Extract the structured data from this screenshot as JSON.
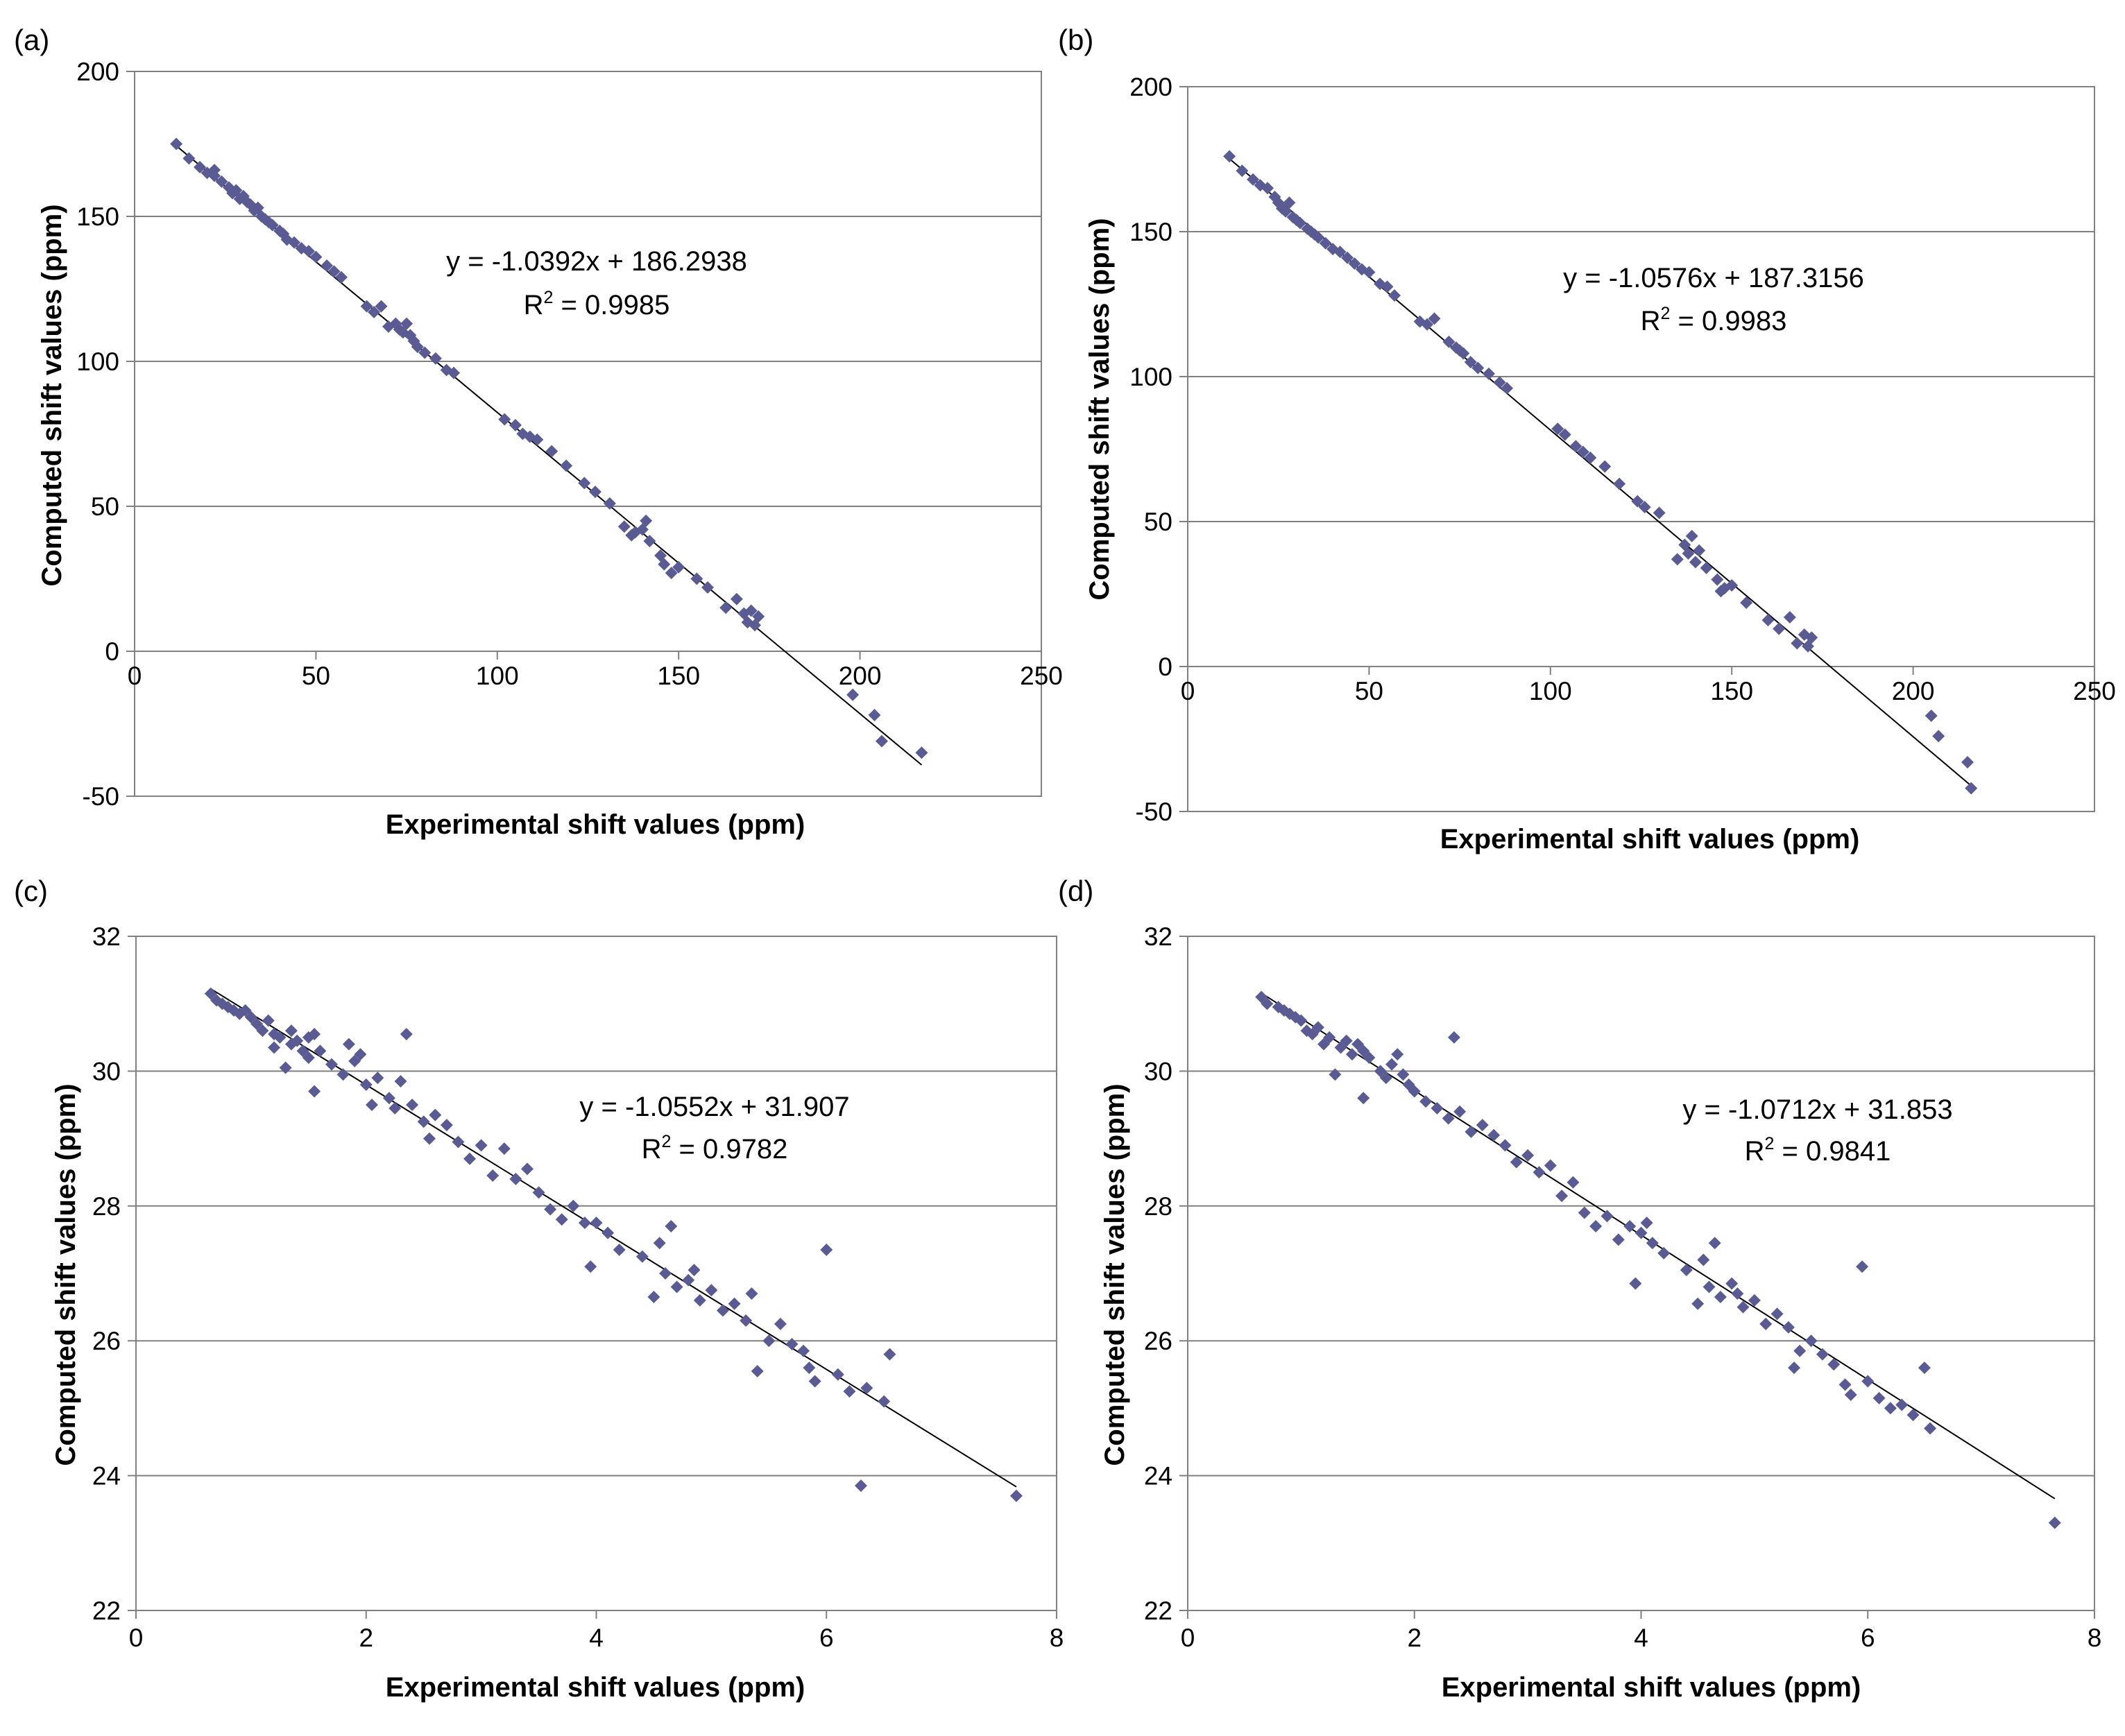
{
  "figure": {
    "background": "#ffffff",
    "marker_color": "#5b5b94",
    "gridline_color": "#808080",
    "trendline_color": "#000000"
  },
  "chart_data": [
    {
      "id": "a",
      "panel_label": "(a)",
      "type": "scatter",
      "xlabel": "Experimental shift values (ppm)",
      "ylabel": "Computed shift values (ppm)",
      "xlim": [
        0,
        250
      ],
      "ylim": [
        -50,
        200
      ],
      "xticks": [
        0,
        50,
        100,
        150,
        200,
        250
      ],
      "xtick_labels": [
        "0",
        "50",
        "100",
        "150",
        "200",
        "250"
      ],
      "yticks": [
        -50,
        0,
        50,
        100,
        150,
        200
      ],
      "ytick_labels": [
        "-50",
        "0",
        "50",
        "100",
        "150",
        "200"
      ],
      "y_gridlines": true,
      "x_axis_crosses_at": 0,
      "trendline": {
        "slope": -1.0392,
        "intercept": 186.2938,
        "x_range": [
          11.5,
          217
        ]
      },
      "equation": "y = -1.0392x + 186.2938",
      "r2_prefix": "R",
      "r2_exp": "2",
      "r2_value": " = 0.9985",
      "x": [
        11.5,
        15,
        18,
        20,
        22,
        22,
        24,
        26,
        27,
        28,
        29,
        30,
        31,
        32,
        33,
        34,
        35,
        36,
        37,
        38,
        40,
        41,
        42,
        44,
        46,
        48,
        50,
        53,
        55,
        57,
        64,
        66,
        68,
        70,
        72,
        73,
        74,
        75,
        76,
        77,
        78,
        80,
        83,
        86,
        88,
        102,
        105,
        107,
        109,
        111,
        115,
        119,
        124,
        127,
        131,
        135,
        137,
        138,
        140,
        141,
        142,
        145,
        146,
        148,
        150,
        155,
        158,
        163,
        166,
        168,
        169,
        170,
        171,
        172,
        198,
        204,
        206,
        217
      ],
      "y": [
        175,
        170,
        167,
        165,
        164,
        166,
        162,
        160,
        158,
        159,
        156,
        157,
        155,
        154,
        152,
        153,
        150,
        149,
        148,
        147,
        145,
        144,
        142,
        141,
        139,
        138,
        136,
        133,
        131,
        129,
        119,
        117,
        119,
        112,
        113,
        111,
        110,
        113,
        109,
        107,
        105,
        103,
        101,
        97,
        96,
        80,
        78,
        75,
        74,
        73,
        69,
        64,
        58,
        55,
        51,
        43,
        40,
        41,
        42,
        45,
        38,
        33,
        30,
        27,
        29,
        25,
        22,
        15,
        18,
        13,
        10,
        14,
        9,
        12,
        -15,
        -22,
        -31,
        -35
      ]
    },
    {
      "id": "b",
      "panel_label": "(b)",
      "type": "scatter",
      "xlabel": "Experimental shift values (ppm)",
      "ylabel": "Computed shift values (ppm)",
      "xlim": [
        0,
        250
      ],
      "ylim": [
        -50,
        200
      ],
      "xticks": [
        0,
        50,
        100,
        150,
        200,
        250
      ],
      "xtick_labels": [
        "0",
        "50",
        "100",
        "150",
        "200",
        "250"
      ],
      "yticks": [
        -50,
        0,
        50,
        100,
        150,
        200
      ],
      "ytick_labels": [
        "-50",
        "0",
        "50",
        "100",
        "150",
        "200"
      ],
      "y_gridlines": true,
      "x_axis_crosses_at": 0,
      "trendline": {
        "slope": -1.0576,
        "intercept": 187.3156,
        "x_range": [
          11.5,
          217
        ]
      },
      "equation": "y = -1.0576x + 187.3156",
      "r2_prefix": "R",
      "r2_exp": "2",
      "r2_value": " = 0.9983",
      "x": [
        11.5,
        15,
        18,
        20,
        22,
        24,
        25,
        26,
        27,
        28,
        29,
        30,
        31,
        33,
        34,
        35,
        36,
        38,
        40,
        42,
        44,
        46,
        48,
        50,
        53,
        55,
        57,
        64,
        66,
        68,
        72,
        74,
        75,
        76,
        78,
        80,
        83,
        86,
        88,
        102,
        104,
        107,
        109,
        111,
        115,
        119,
        124,
        126,
        130,
        135,
        137,
        138,
        139,
        140,
        141,
        143,
        146,
        147,
        148,
        150,
        154,
        160,
        163,
        166,
        168,
        170,
        171,
        172,
        205,
        207,
        215,
        216
      ],
      "y": [
        176,
        171,
        168,
        166,
        165,
        162,
        160,
        158,
        157,
        160,
        155,
        154,
        153,
        151,
        150,
        149,
        148,
        146,
        144,
        143,
        141,
        139,
        137,
        136,
        132,
        131,
        128,
        119,
        118,
        120,
        112,
        110,
        109,
        108,
        105,
        103,
        101,
        98,
        96,
        82,
        80,
        76,
        74,
        72,
        69,
        63,
        57,
        55,
        53,
        37,
        42,
        39,
        45,
        36,
        40,
        34,
        30,
        26,
        27,
        28,
        22,
        16,
        13,
        17,
        8,
        11,
        7,
        10,
        -17,
        -24,
        -33,
        -42
      ]
    },
    {
      "id": "c",
      "panel_label": "(c)",
      "type": "scatter",
      "xlabel": "Experimental shift values (ppm)",
      "ylabel": "Computed shift values (ppm)",
      "xlim": [
        0,
        8
      ],
      "ylim": [
        22,
        32
      ],
      "xticks": [
        0,
        2,
        4,
        6,
        8
      ],
      "xtick_labels": [
        "0",
        "2",
        "4",
        "6",
        "8"
      ],
      "yticks": [
        22,
        24,
        26,
        28,
        30,
        32
      ],
      "ytick_labels": [
        "22",
        "24",
        "26",
        "28",
        "30",
        "32"
      ],
      "y_gridlines": true,
      "trendline": {
        "slope": -1.0552,
        "intercept": 31.907,
        "x_range": [
          0.65,
          7.65
        ]
      },
      "equation": "y = -1.0552x + 31.907",
      "r2_prefix": "R",
      "r2_exp": "2",
      "r2_value": " = 0.9782",
      "x": [
        0.65,
        0.7,
        0.75,
        0.8,
        0.85,
        0.9,
        0.95,
        1.0,
        1.05,
        1.1,
        1.15,
        1.2,
        1.2,
        1.25,
        1.3,
        1.35,
        1.35,
        1.4,
        1.45,
        1.5,
        1.5,
        1.55,
        1.55,
        1.6,
        1.7,
        1.8,
        1.85,
        1.9,
        1.95,
        2.0,
        2.05,
        2.1,
        2.2,
        2.25,
        2.3,
        2.35,
        2.4,
        2.5,
        2.55,
        2.6,
        2.7,
        2.8,
        2.9,
        3.0,
        3.1,
        3.2,
        3.3,
        3.4,
        3.5,
        3.6,
        3.7,
        3.8,
        3.9,
        3.95,
        4.0,
        4.1,
        4.2,
        4.4,
        4.5,
        4.55,
        4.6,
        4.65,
        4.7,
        4.8,
        4.85,
        4.9,
        5.0,
        5.1,
        5.2,
        5.3,
        5.35,
        5.4,
        5.5,
        5.6,
        5.7,
        5.8,
        5.85,
        5.9,
        6.0,
        6.1,
        6.2,
        6.3,
        6.35,
        6.5,
        6.55,
        7.65
      ],
      "y": [
        31.15,
        31.05,
        31.0,
        30.95,
        30.9,
        30.85,
        30.9,
        30.8,
        30.7,
        30.6,
        30.75,
        30.55,
        30.35,
        30.5,
        30.05,
        30.4,
        30.6,
        30.45,
        30.3,
        30.5,
        30.2,
        30.55,
        29.7,
        30.3,
        30.1,
        29.95,
        30.4,
        30.15,
        30.25,
        29.8,
        29.5,
        29.9,
        29.6,
        29.45,
        29.85,
        30.55,
        29.5,
        29.25,
        29.0,
        29.35,
        29.2,
        28.95,
        28.7,
        28.9,
        28.45,
        28.85,
        28.4,
        28.55,
        28.2,
        27.95,
        27.8,
        28.0,
        27.75,
        27.1,
        27.75,
        27.6,
        27.35,
        27.25,
        26.65,
        27.45,
        27.0,
        27.7,
        26.8,
        26.9,
        27.05,
        26.6,
        26.75,
        26.45,
        26.55,
        26.3,
        26.7,
        25.55,
        26.0,
        26.25,
        25.95,
        25.85,
        25.6,
        25.4,
        27.35,
        25.5,
        25.25,
        23.85,
        25.3,
        25.1,
        25.8,
        23.7
      ]
    },
    {
      "id": "d",
      "panel_label": "(d)",
      "type": "scatter",
      "xlabel": "Experimental shift values (ppm)",
      "ylabel": "Computed shift values (ppm)",
      "xlim": [
        0,
        8
      ],
      "ylim": [
        22,
        32
      ],
      "xticks": [
        0,
        2,
        4,
        6,
        8
      ],
      "xtick_labels": [
        "0",
        "2",
        "4",
        "6",
        "8"
      ],
      "yticks": [
        22,
        24,
        26,
        28,
        30,
        32
      ],
      "ytick_labels": [
        "22",
        "24",
        "26",
        "28",
        "30",
        "32"
      ],
      "y_gridlines": true,
      "trendline": {
        "slope": -1.0712,
        "intercept": 31.853,
        "x_range": [
          0.65,
          7.65
        ]
      },
      "equation": "y = -1.0712x + 31.853",
      "r2_prefix": "R",
      "r2_exp": "2",
      "r2_value": " = 0.9841",
      "x": [
        0.65,
        0.7,
        0.8,
        0.85,
        0.9,
        0.95,
        1.0,
        1.05,
        1.1,
        1.15,
        1.2,
        1.25,
        1.3,
        1.35,
        1.4,
        1.45,
        1.5,
        1.55,
        1.55,
        1.6,
        1.7,
        1.75,
        1.8,
        1.85,
        1.9,
        1.95,
        2.0,
        2.1,
        2.2,
        2.3,
        2.35,
        2.4,
        2.5,
        2.6,
        2.7,
        2.8,
        2.9,
        3.0,
        3.1,
        3.2,
        3.3,
        3.4,
        3.5,
        3.6,
        3.7,
        3.8,
        3.9,
        3.95,
        4.0,
        4.05,
        4.1,
        4.2,
        4.4,
        4.5,
        4.55,
        4.6,
        4.65,
        4.7,
        4.8,
        4.85,
        4.9,
        5.0,
        5.1,
        5.2,
        5.3,
        5.35,
        5.4,
        5.5,
        5.6,
        5.7,
        5.8,
        5.85,
        5.95,
        6.0,
        6.1,
        6.2,
        6.3,
        6.4,
        6.5,
        6.55,
        7.65
      ],
      "y": [
        31.1,
        31.0,
        30.95,
        30.9,
        30.85,
        30.8,
        30.75,
        30.6,
        30.55,
        30.65,
        30.4,
        30.5,
        29.95,
        30.35,
        30.45,
        30.25,
        30.4,
        30.3,
        29.6,
        30.2,
        30.0,
        29.9,
        30.1,
        30.25,
        29.95,
        29.8,
        29.7,
        29.55,
        29.45,
        29.3,
        30.5,
        29.4,
        29.1,
        29.2,
        29.05,
        28.9,
        28.65,
        28.75,
        28.5,
        28.6,
        28.15,
        28.35,
        27.9,
        27.7,
        27.85,
        27.5,
        27.7,
        26.85,
        27.6,
        27.75,
        27.45,
        27.3,
        27.05,
        26.55,
        27.2,
        26.8,
        27.45,
        26.65,
        26.85,
        26.7,
        26.5,
        26.6,
        26.25,
        26.4,
        26.2,
        25.6,
        25.85,
        26.0,
        25.8,
        25.65,
        25.35,
        25.2,
        27.1,
        25.4,
        25.15,
        25.0,
        25.05,
        24.9,
        25.6,
        24.7,
        23.3
      ]
    }
  ]
}
